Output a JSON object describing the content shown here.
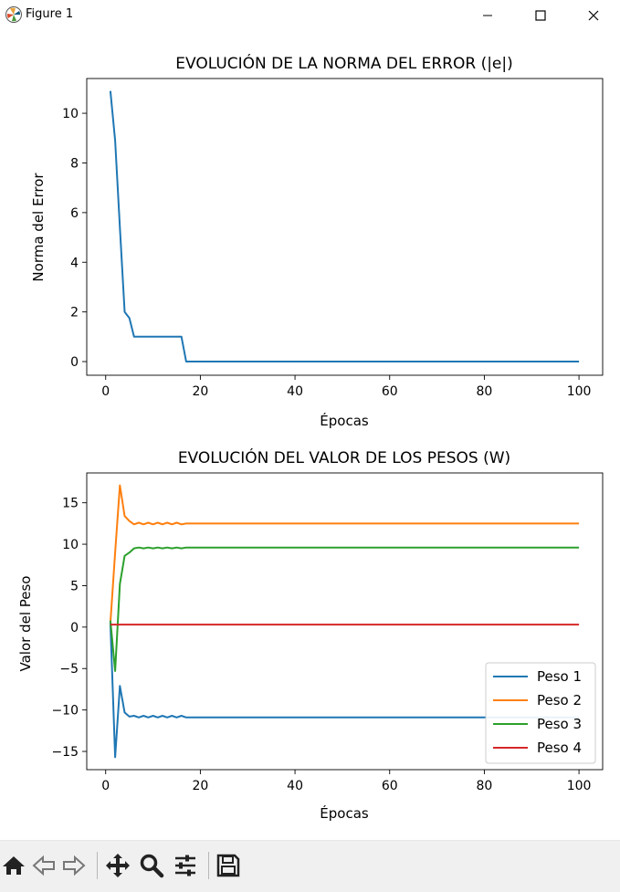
{
  "window": {
    "title": "Figure 1"
  },
  "toolbar": {
    "buttons": [
      "home-icon",
      "back-arrow-icon",
      "forward-arrow-icon",
      "pan-icon",
      "zoom-icon",
      "configure-subplots-icon",
      "save-icon"
    ]
  },
  "chart_data": [
    {
      "type": "line",
      "title": "EVOLUCIÓN DE LA NORMA DEL ERROR (|e|)",
      "xlabel": "Épocas",
      "ylabel": "Norma del Error",
      "xlim": [
        -4,
        105
      ],
      "ylim": [
        -0.55,
        11.4
      ],
      "xticks": [
        0,
        20,
        40,
        60,
        80,
        100
      ],
      "yticks": [
        0,
        2,
        4,
        6,
        8,
        10
      ],
      "grid": false,
      "series": [
        {
          "color": "#1f77b4",
          "points": [
            [
              1,
              10.9
            ],
            [
              2,
              8.9
            ],
            [
              3,
              5.4
            ],
            [
              4,
              2.0
            ],
            [
              5,
              1.75
            ],
            [
              6,
              1.0
            ],
            [
              7,
              1.0
            ],
            [
              8,
              1.0
            ],
            [
              9,
              1.0
            ],
            [
              10,
              1.0
            ],
            [
              11,
              1.0
            ],
            [
              12,
              1.0
            ],
            [
              13,
              1.0
            ],
            [
              14,
              1.0
            ],
            [
              15,
              1.0
            ],
            [
              16,
              1.0
            ],
            [
              17,
              0.0
            ],
            [
              100,
              0.0
            ]
          ]
        }
      ]
    },
    {
      "type": "line",
      "title": "EVOLUCIÓN DEL VALOR DE LOS PESOS (W)",
      "xlabel": "Épocas",
      "ylabel": "Valor del Peso",
      "xlim": [
        -4,
        105
      ],
      "ylim": [
        -17.2,
        18.6
      ],
      "xticks": [
        0,
        20,
        40,
        60,
        80,
        100
      ],
      "yticks": [
        -15,
        -10,
        -5,
        0,
        5,
        10,
        15
      ],
      "grid": false,
      "legend": "lower-right",
      "series": [
        {
          "name": "Peso 1",
          "color": "#1f77b4",
          "points": [
            [
              1,
              0.5
            ],
            [
              2,
              -15.7
            ],
            [
              3,
              -7.1
            ],
            [
              4,
              -10.3
            ],
            [
              5,
              -10.8
            ],
            [
              6,
              -10.7
            ],
            [
              7,
              -10.9
            ],
            [
              8,
              -10.7
            ],
            [
              9,
              -10.9
            ],
            [
              10,
              -10.7
            ],
            [
              11,
              -10.9
            ],
            [
              12,
              -10.7
            ],
            [
              13,
              -10.9
            ],
            [
              14,
              -10.7
            ],
            [
              15,
              -10.9
            ],
            [
              16,
              -10.7
            ],
            [
              17,
              -10.9
            ],
            [
              100,
              -10.9
            ]
          ]
        },
        {
          "name": "Peso 2",
          "color": "#ff7f0e",
          "points": [
            [
              1,
              0.5
            ],
            [
              2,
              9.0
            ],
            [
              3,
              17.1
            ],
            [
              4,
              13.4
            ],
            [
              5,
              12.8
            ],
            [
              6,
              12.4
            ],
            [
              7,
              12.6
            ],
            [
              8,
              12.4
            ],
            [
              9,
              12.6
            ],
            [
              10,
              12.4
            ],
            [
              11,
              12.6
            ],
            [
              12,
              12.4
            ],
            [
              13,
              12.6
            ],
            [
              14,
              12.4
            ],
            [
              15,
              12.6
            ],
            [
              16,
              12.4
            ],
            [
              17,
              12.5
            ],
            [
              100,
              12.5
            ]
          ]
        },
        {
          "name": "Peso 3",
          "color": "#2ca02c",
          "points": [
            [
              1,
              0.8
            ],
            [
              2,
              -5.3
            ],
            [
              3,
              5.2
            ],
            [
              4,
              8.6
            ],
            [
              5,
              9.0
            ],
            [
              6,
              9.5
            ],
            [
              7,
              9.6
            ],
            [
              8,
              9.5
            ],
            [
              9,
              9.6
            ],
            [
              10,
              9.5
            ],
            [
              11,
              9.6
            ],
            [
              12,
              9.5
            ],
            [
              13,
              9.6
            ],
            [
              14,
              9.5
            ],
            [
              15,
              9.6
            ],
            [
              16,
              9.5
            ],
            [
              17,
              9.6
            ],
            [
              100,
              9.6
            ]
          ]
        },
        {
          "name": "Peso 4",
          "color": "#d62728",
          "points": [
            [
              1,
              0.3
            ],
            [
              100,
              0.3
            ]
          ]
        }
      ]
    }
  ]
}
